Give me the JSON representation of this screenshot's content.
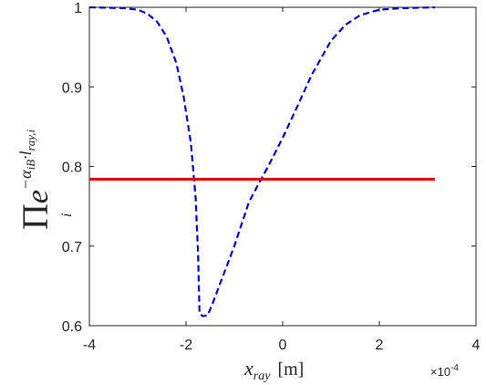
{
  "chart_data": {
    "type": "line",
    "xlim": [
      -4,
      4
    ],
    "ylim": [
      0.6,
      1
    ],
    "x_ticks": [
      -4,
      -2,
      0,
      2,
      4
    ],
    "x_tick_labels": [
      "-4",
      "-2",
      "0",
      "2",
      "4"
    ],
    "y_ticks": [
      0.6,
      0.7,
      0.8,
      0.9,
      1
    ],
    "y_tick_labels": [
      "0.6",
      "0.7",
      "0.8",
      "0.9",
      "1"
    ],
    "x_multiplier": {
      "base": "×10",
      "exponent": "-4"
    },
    "xlabel": {
      "var": "x",
      "sub": "ray",
      "unit": "[m]"
    },
    "ylabel": {
      "prod": "Π",
      "index": "i",
      "base": "e",
      "exponent": "−α",
      "exp_sub1": "iB",
      "exp_mid": "·l",
      "exp_sub2": "ray,i"
    },
    "grid": false,
    "series": [
      {
        "style": "dashed",
        "color": "#0000cc",
        "x": [
          -4.0,
          -3.3,
          -3.0,
          -2.8,
          -2.6,
          -2.4,
          -2.2,
          -2.05,
          -1.9,
          -1.8,
          -1.75,
          -1.72,
          -1.65,
          -1.55,
          -1.45,
          -1.3,
          -1.0,
          -0.7,
          -0.5,
          -0.3,
          0.0,
          0.3,
          0.6,
          1.0,
          1.3,
          1.6,
          2.0,
          2.5,
          3.15
        ],
        "values": [
          1.0,
          0.999,
          0.997,
          0.992,
          0.982,
          0.963,
          0.93,
          0.888,
          0.83,
          0.76,
          0.69,
          0.615,
          0.612,
          0.613,
          0.628,
          0.652,
          0.7,
          0.755,
          0.778,
          0.8,
          0.836,
          0.875,
          0.915,
          0.958,
          0.978,
          0.99,
          0.997,
          0.999,
          1.0
        ]
      },
      {
        "style": "solid",
        "color": "#e00000",
        "x": [
          -4.0,
          3.15
        ],
        "values": [
          0.784,
          0.784
        ]
      }
    ]
  }
}
